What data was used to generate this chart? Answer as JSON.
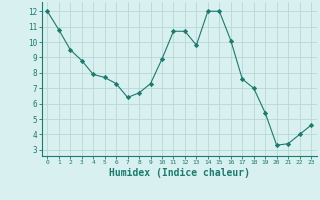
{
  "x": [
    0,
    1,
    2,
    3,
    4,
    5,
    6,
    7,
    8,
    9,
    10,
    11,
    12,
    13,
    14,
    15,
    16,
    17,
    18,
    19,
    20,
    21,
    22,
    23
  ],
  "y": [
    12.0,
    10.8,
    9.5,
    8.8,
    7.9,
    7.7,
    7.3,
    6.4,
    6.7,
    7.3,
    8.9,
    10.7,
    10.7,
    9.8,
    12.0,
    12.0,
    10.1,
    7.6,
    7.0,
    5.4,
    3.3,
    3.4,
    4.0,
    4.6
  ],
  "line_color": "#1a7a6e",
  "marker": "D",
  "marker_size": 2.2,
  "bg_color": "#d8f0f0",
  "grid_color": "#b8d8d4",
  "xlabel": "Humidex (Indice chaleur)",
  "xlabel_fontsize": 7,
  "xlabel_color": "#1a7a6e",
  "xtick_labels": [
    "0",
    "1",
    "2",
    "3",
    "4",
    "5",
    "6",
    "7",
    "8",
    "9",
    "10",
    "11",
    "12",
    "13",
    "14",
    "15",
    "16",
    "17",
    "18",
    "19",
    "20",
    "21",
    "22",
    "23"
  ],
  "ytick_min": 3,
  "ytick_max": 12,
  "ytick_step": 1,
  "xlim": [
    -0.5,
    23.5
  ],
  "ylim": [
    2.6,
    12.6
  ]
}
